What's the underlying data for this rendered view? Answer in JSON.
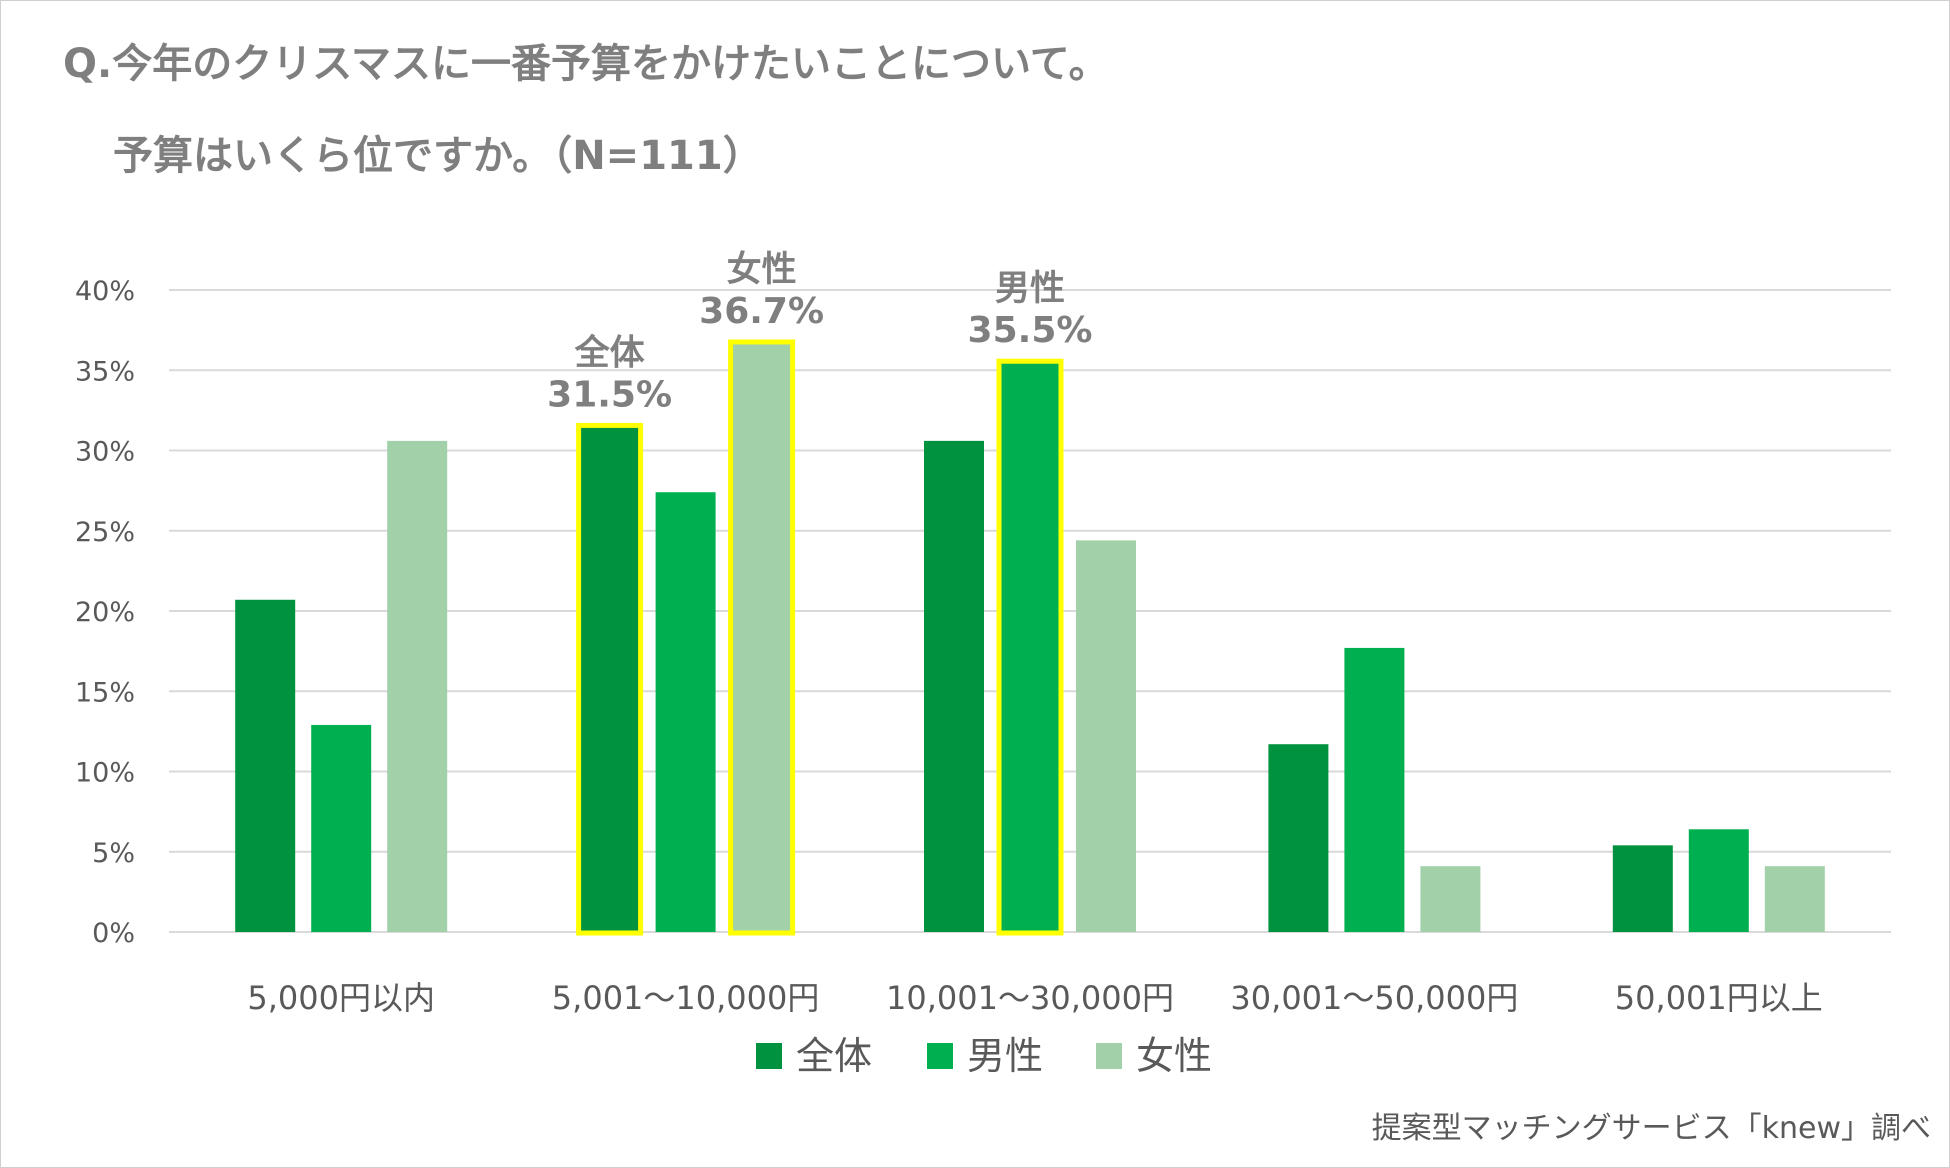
{
  "title_line1": "Q.今年のクリスマスに一番予算をかけたいことについて。",
  "title_line2": "予算はいくら位ですか。（N=111）",
  "source": "提案型マッチングサービス「knew」調べ",
  "chart_data": {
    "type": "bar",
    "title": "Q.今年のクリスマスに一番予算をかけたいことについて。予算はいくら位ですか。（N=111）",
    "categories": [
      "5,000円以内",
      "5,001～10,000円",
      "10,001～30,000円",
      "30,001～50,000円",
      "50,001円以上"
    ],
    "series": [
      {
        "name": "全体",
        "color": "#00923F",
        "values": [
          20.7,
          31.5,
          30.6,
          11.7,
          5.4
        ]
      },
      {
        "name": "男性",
        "color": "#00B050",
        "values": [
          12.9,
          27.4,
          35.5,
          17.7,
          6.4
        ]
      },
      {
        "name": "女性",
        "color": "#A2D0A8",
        "values": [
          30.6,
          36.7,
          24.4,
          4.1,
          4.1
        ]
      }
    ],
    "ylim": [
      0,
      40
    ],
    "yticks": [
      0,
      5,
      10,
      15,
      20,
      25,
      30,
      35,
      40
    ],
    "ytick_labels": [
      "0%",
      "5%",
      "10%",
      "15%",
      "20%",
      "25%",
      "30%",
      "35%",
      "40%"
    ],
    "grid": true,
    "legend_placement": "bottom",
    "highlight_color": "#FFFF00",
    "annotations": [
      {
        "category": 1,
        "series": 0,
        "name": "全体",
        "value_label": "31.5%"
      },
      {
        "category": 1,
        "series": 2,
        "name": "女性",
        "value_label": "36.7%"
      },
      {
        "category": 2,
        "series": 1,
        "name": "男性",
        "value_label": "35.5%"
      }
    ]
  }
}
